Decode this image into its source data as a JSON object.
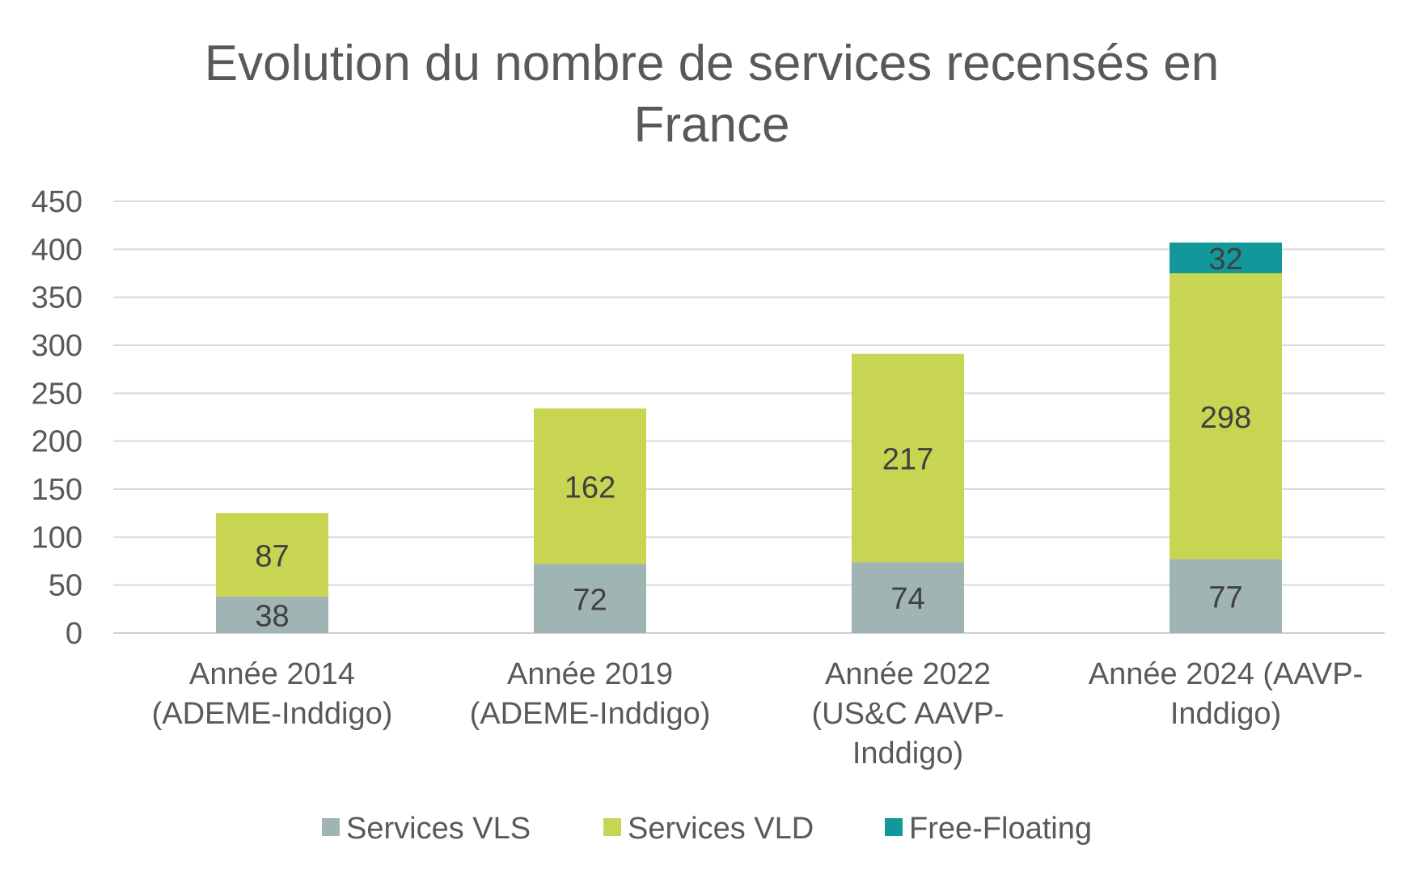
{
  "chart_data": {
    "type": "bar",
    "stacked": true,
    "title": "Evolution du nombre de services recensés en France",
    "title_lines": [
      "Evolution du nombre de services recensés en",
      "France"
    ],
    "categories": [
      "Année 2014 (ADEME-Inddigo)",
      "Année 2019 (ADEME-Inddigo)",
      "Année 2022 (US&C AAVP-Inddigo)",
      "Année 2024 (AAVP-Inddigo)"
    ],
    "category_lines": [
      [
        "Année 2014",
        "(ADEME-Inddigo)"
      ],
      [
        "Année 2019",
        "(ADEME-Inddigo)"
      ],
      [
        "Année 2022",
        "(US&C AAVP-",
        "Inddigo)"
      ],
      [
        "Année 2024 (AAVP-",
        "Inddigo)"
      ]
    ],
    "series": [
      {
        "name": "Services VLS",
        "values": [
          38,
          72,
          74,
          77
        ],
        "color": "#9fb4b3"
      },
      {
        "name": "Services VLD",
        "values": [
          87,
          162,
          217,
          298
        ],
        "color": "#c8d552"
      },
      {
        "name": "Free-Floating",
        "values": [
          null,
          null,
          null,
          32
        ],
        "color": "#12979b"
      }
    ],
    "ylim": [
      0,
      450
    ],
    "yticks": [
      "0",
      "50",
      "100",
      "150",
      "200",
      "250",
      "300",
      "350",
      "400",
      "450"
    ],
    "xlabel": "",
    "ylabel": "",
    "grid": true,
    "legend": "bottom"
  }
}
